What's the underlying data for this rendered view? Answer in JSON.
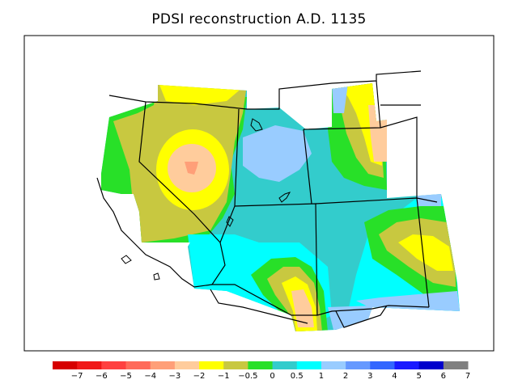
{
  "title": "PDSI reconstruction A.D. 1135",
  "colorbar": {
    "colors": [
      "#d60000",
      "#f01818",
      "#ff4040",
      "#ff6a5a",
      "#ff9f78",
      "#ffcc9c",
      "#ffff00",
      "#c8c840",
      "#28e028",
      "#33cccc",
      "#00ffff",
      "#99ccff",
      "#6699ff",
      "#3366ff",
      "#1a1aff",
      "#0000cc",
      "#808080"
    ],
    "labels": [
      "−7",
      "−6",
      "−5",
      "−4",
      "−3",
      "−2",
      "−1",
      "−0.5",
      "0",
      "0.5",
      "1",
      "2",
      "3",
      "4",
      "5",
      "6",
      "7"
    ]
  },
  "legend_values": [
    -7,
    -6,
    -5,
    -4,
    -3,
    -2,
    -1,
    -0.5,
    0,
    0.5,
    1,
    2,
    3,
    4,
    5,
    6,
    7
  ]
}
